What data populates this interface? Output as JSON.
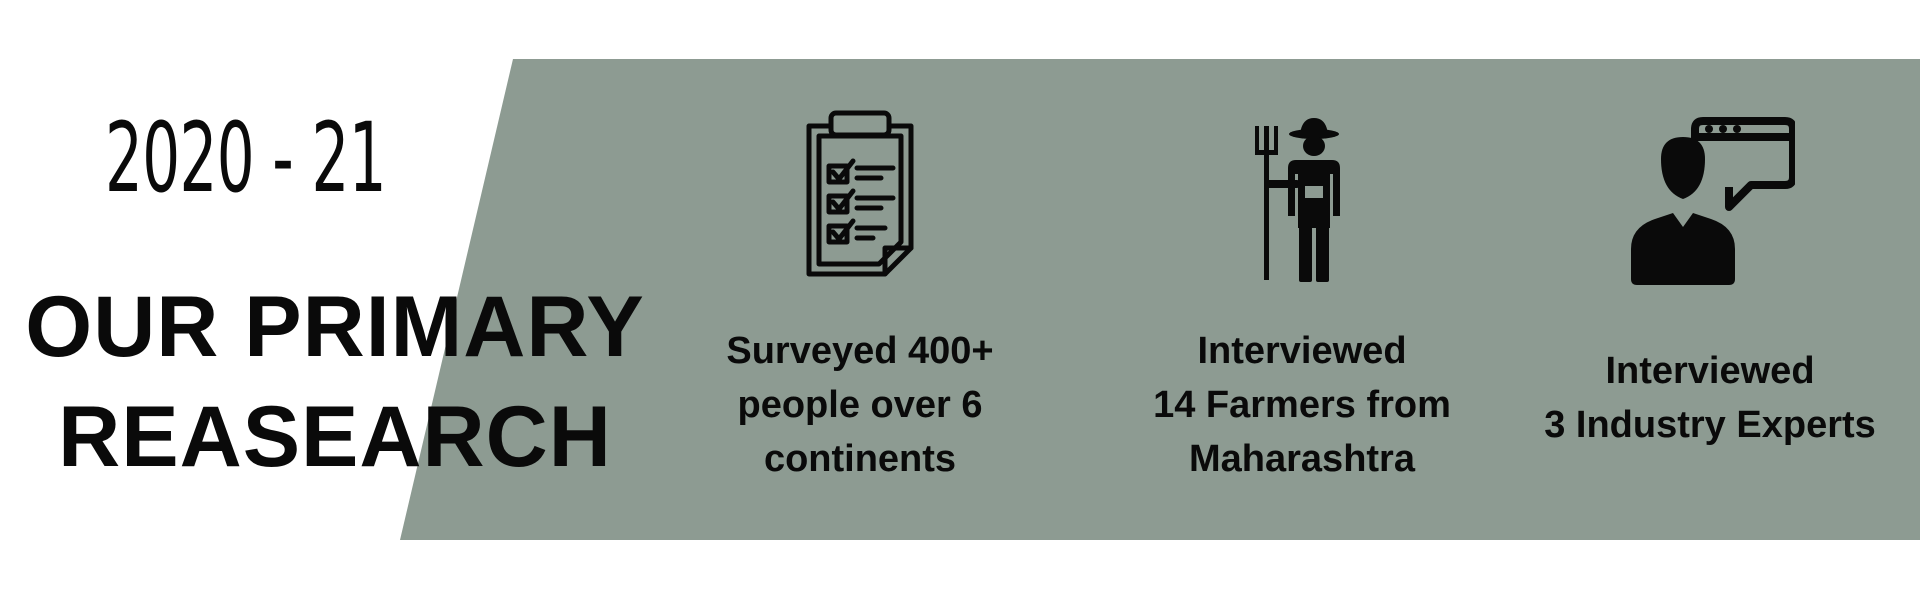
{
  "header": {
    "year": "2020 - 21",
    "title_line_1": "OUR PRIMARY",
    "title_line_2": "REASEARCH"
  },
  "colors": {
    "band": "#8d9b92",
    "text": "#0a0a0a",
    "background": "#ffffff"
  },
  "stats": [
    {
      "icon": "clipboard-checklist-icon",
      "lines": [
        "Surveyed 400+",
        "people over 6",
        "continents"
      ]
    },
    {
      "icon": "farmer-pitchfork-icon",
      "lines": [
        "Interviewed",
        "14 Farmers from",
        "Maharashtra"
      ]
    },
    {
      "icon": "expert-chat-icon",
      "lines": [
        "Interviewed",
        "3 Industry Experts"
      ]
    }
  ]
}
